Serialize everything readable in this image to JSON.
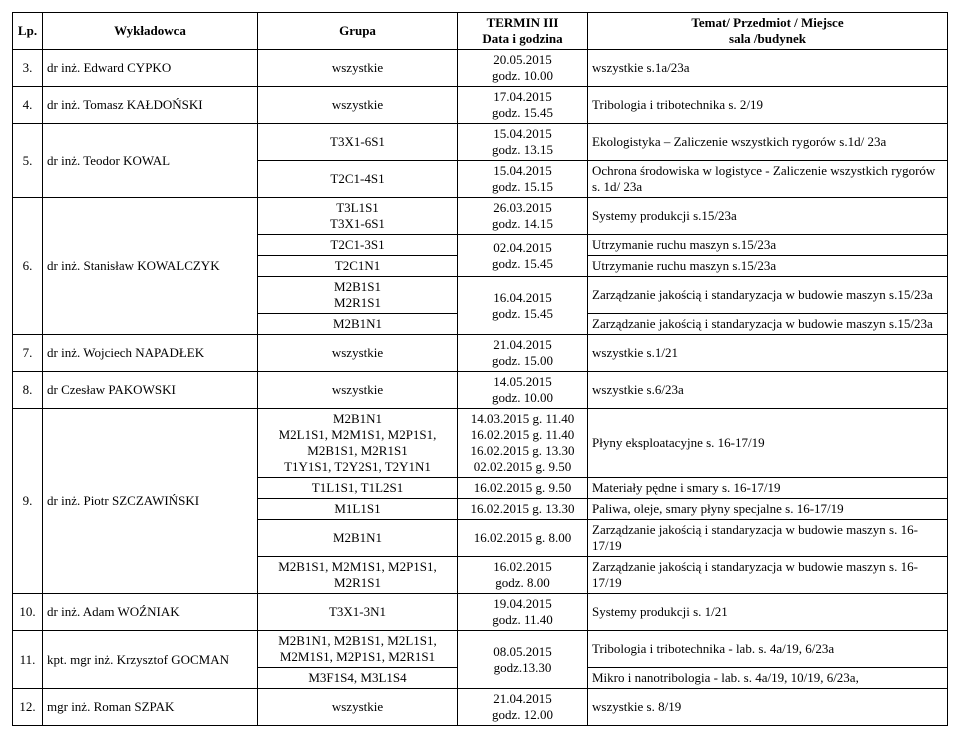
{
  "headers": {
    "lp": "Lp.",
    "wyk": "Wykładowca",
    "grupa": "Grupa",
    "termin_l1": "TERMIN III",
    "termin_l2": "Data i godzina",
    "temat_l1": "Temat/ Przedmiot / Miejsce",
    "temat_l2": "sala /budynek"
  },
  "rows": [
    {
      "lp": "3.",
      "wyk": "dr inż. Edward CYPKO",
      "grp": "wszystkie",
      "ter": "20.05.2015\ngodz. 10.00",
      "tem": "wszystkie s.1a/23a"
    },
    {
      "lp": "4.",
      "wyk": "dr inż. Tomasz KAŁDOŃSKI",
      "grp": "wszystkie",
      "ter": "17.04.2015\ngodz. 15.45",
      "tem": "Tribologia i tribotechnika s. 2/19"
    },
    {
      "lp": "5.",
      "wyk": "dr inż. Teodor KOWAL",
      "rs": 2,
      "sub": [
        {
          "grp": "T3X1-6S1",
          "ter": "15.04.2015\ngodz. 13.15",
          "tem": "Ekologistyka – Zaliczenie wszystkich rygorów s.1d/ 23a"
        },
        {
          "grp": "T2C1-4S1",
          "ter": "15.04.2015\ngodz. 15.15",
          "tem": "Ochrona środowiska w logistyce - Zaliczenie wszystkich rygorów s. 1d/ 23a"
        }
      ]
    },
    {
      "lp": "6.",
      "wyk": "dr inż. Stanisław KOWALCZYK",
      "rs": 5,
      "sub": [
        {
          "grp": "T3L1S1\nT3X1-6S1",
          "ter": "26.03.2015\ngodz. 14.15",
          "tem": "Systemy produkcji s.15/23a"
        },
        {
          "grp": "T2C1-3S1",
          "ter": "02.04.2015\ngodz. 15.45",
          "tr": 2,
          "tem": "Utrzymanie ruchu maszyn s.15/23a"
        },
        {
          "grp": "T2C1N1",
          "tem": "Utrzymanie ruchu maszyn s.15/23a"
        },
        {
          "grp": "M2B1S1\nM2R1S1",
          "ter": "16.04.2015\ngodz. 15.45",
          "tr": 2,
          "tem": "Zarządzanie jakością i standaryzacja w budowie maszyn s.15/23a"
        },
        {
          "grp": "M2B1N1",
          "tem": "Zarządzanie jakością i standaryzacja w budowie maszyn s.15/23a"
        }
      ]
    },
    {
      "lp": "7.",
      "wyk": "dr inż. Wojciech NAPADŁEK",
      "grp": "wszystkie",
      "ter": "21.04.2015\ngodz. 15.00",
      "tem": "wszystkie s.1/21"
    },
    {
      "lp": "8.",
      "wyk": "dr Czesław PAKOWSKI",
      "grp": "wszystkie",
      "ter": "14.05.2015\ngodz. 10.00",
      "tem": "wszystkie s.6/23a"
    },
    {
      "lp": "9.",
      "wyk": "dr inż. Piotr SZCZAWIŃSKI",
      "rs": 5,
      "sub": [
        {
          "grp": "M2B1N1\nM2L1S1, M2M1S1, M2P1S1,\nM2B1S1, M2R1S1\nT1Y1S1, T2Y2S1, T2Y1N1",
          "ter": "14.03.2015 g. 11.40\n16.02.2015 g. 11.40\n16.02.2015 g. 13.30\n02.02.2015 g. 9.50",
          "tem": "Płyny eksploatacyjne s. 16-17/19"
        },
        {
          "grp": "T1L1S1, T1L2S1",
          "ter": "16.02.2015 g. 9.50",
          "tem": "Materiały pędne i smary  s. 16-17/19"
        },
        {
          "grp": "M1L1S1",
          "ter": "16.02.2015 g. 13.30",
          "tem": "Paliwa, oleje, smary płyny specjalne s. 16-17/19"
        },
        {
          "grp": "M2B1N1",
          "ter": "16.02.2015 g. 8.00",
          "tem": "Zarządzanie jakością i standaryzacja w budowie maszyn s. 16-17/19"
        },
        {
          "grp": "M2B1S1, M2M1S1, M2P1S1,\nM2R1S1",
          "ter": "16.02.2015\ngodz. 8.00",
          "tem": "Zarządzanie jakością i standaryzacja w budowie maszyn s. 16-17/19"
        }
      ]
    },
    {
      "lp": "10.",
      "wyk": "dr inż. Adam WOŹNIAK",
      "grp": "T3X1-3N1",
      "ter": "19.04.2015\ngodz. 11.40",
      "tem": "Systemy produkcji s. 1/21"
    },
    {
      "lp": "11.",
      "wyk": "kpt. mgr inż. Krzysztof GOCMAN",
      "rs": 2,
      "sub": [
        {
          "grp": "M2B1N1, M2B1S1, M2L1S1,\nM2M1S1, M2P1S1, M2R1S1",
          "ter": "08.05.2015\ngodz.13.30",
          "tr": 2,
          "tem": "Tribologia i tribotechnika - lab. s. 4a/19, 6/23a"
        },
        {
          "grp": "M3F1S4, M3L1S4",
          "tem": "Mikro i nanotribologia - lab. s. 4a/19, 10/19,  6/23a,"
        }
      ]
    },
    {
      "lp": "12.",
      "wyk": "mgr inż. Roman SZPAK",
      "grp": "wszystkie",
      "ter": "21.04.2015\ngodz. 12.00",
      "tem": "wszystkie s. 8/19"
    }
  ]
}
